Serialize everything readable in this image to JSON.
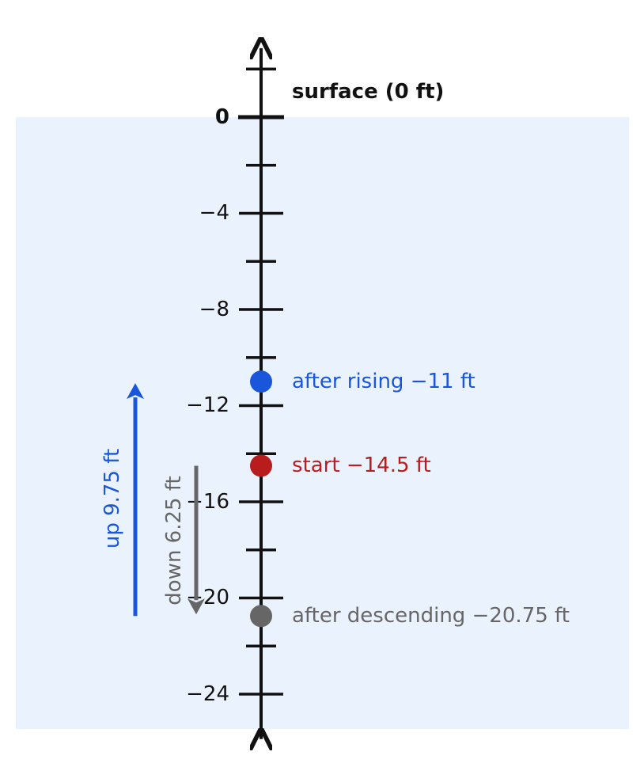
{
  "diagram": {
    "surface_label": "surface (0 ft)",
    "tick_labels": [
      "0",
      "−4",
      "−8",
      "−12",
      "−16",
      "−20",
      "−24"
    ],
    "points": [
      {
        "id": "after-rising",
        "value": -11,
        "label": "after rising  −11 ft",
        "color": "#1a56db"
      },
      {
        "id": "start",
        "value": -14.5,
        "label": "start  −14.5 ft",
        "color": "#b91c1c"
      },
      {
        "id": "after-descending",
        "value": -20.75,
        "label": "after descending  −20.75 ft",
        "color": "#666666"
      }
    ],
    "arrows": [
      {
        "id": "up",
        "label": "up 9.75 ft",
        "from": -20.75,
        "to": -11,
        "color": "#1a56db"
      },
      {
        "id": "down",
        "label": "down 6.25 ft",
        "from": -14.5,
        "to": -20.75,
        "color": "#666666"
      }
    ],
    "colors": {
      "water": "#eaf2fd",
      "axis": "#111111",
      "text": "#111111"
    }
  },
  "chart_data": {
    "type": "number-line",
    "axis_range": [
      -26,
      3
    ],
    "major_ticks": [
      0,
      -4,
      -8,
      -12,
      -16,
      -20,
      -24
    ],
    "minor_ticks": [
      2,
      -2,
      -6,
      -10,
      -14,
      -18,
      -22
    ],
    "surface": 0,
    "points": [
      {
        "name": "start",
        "value": -14.5
      },
      {
        "name": "after descending",
        "value": -20.75
      },
      {
        "name": "after rising",
        "value": -11
      }
    ],
    "moves": [
      {
        "direction": "down",
        "amount": 6.25
      },
      {
        "direction": "up",
        "amount": 9.75
      }
    ]
  }
}
